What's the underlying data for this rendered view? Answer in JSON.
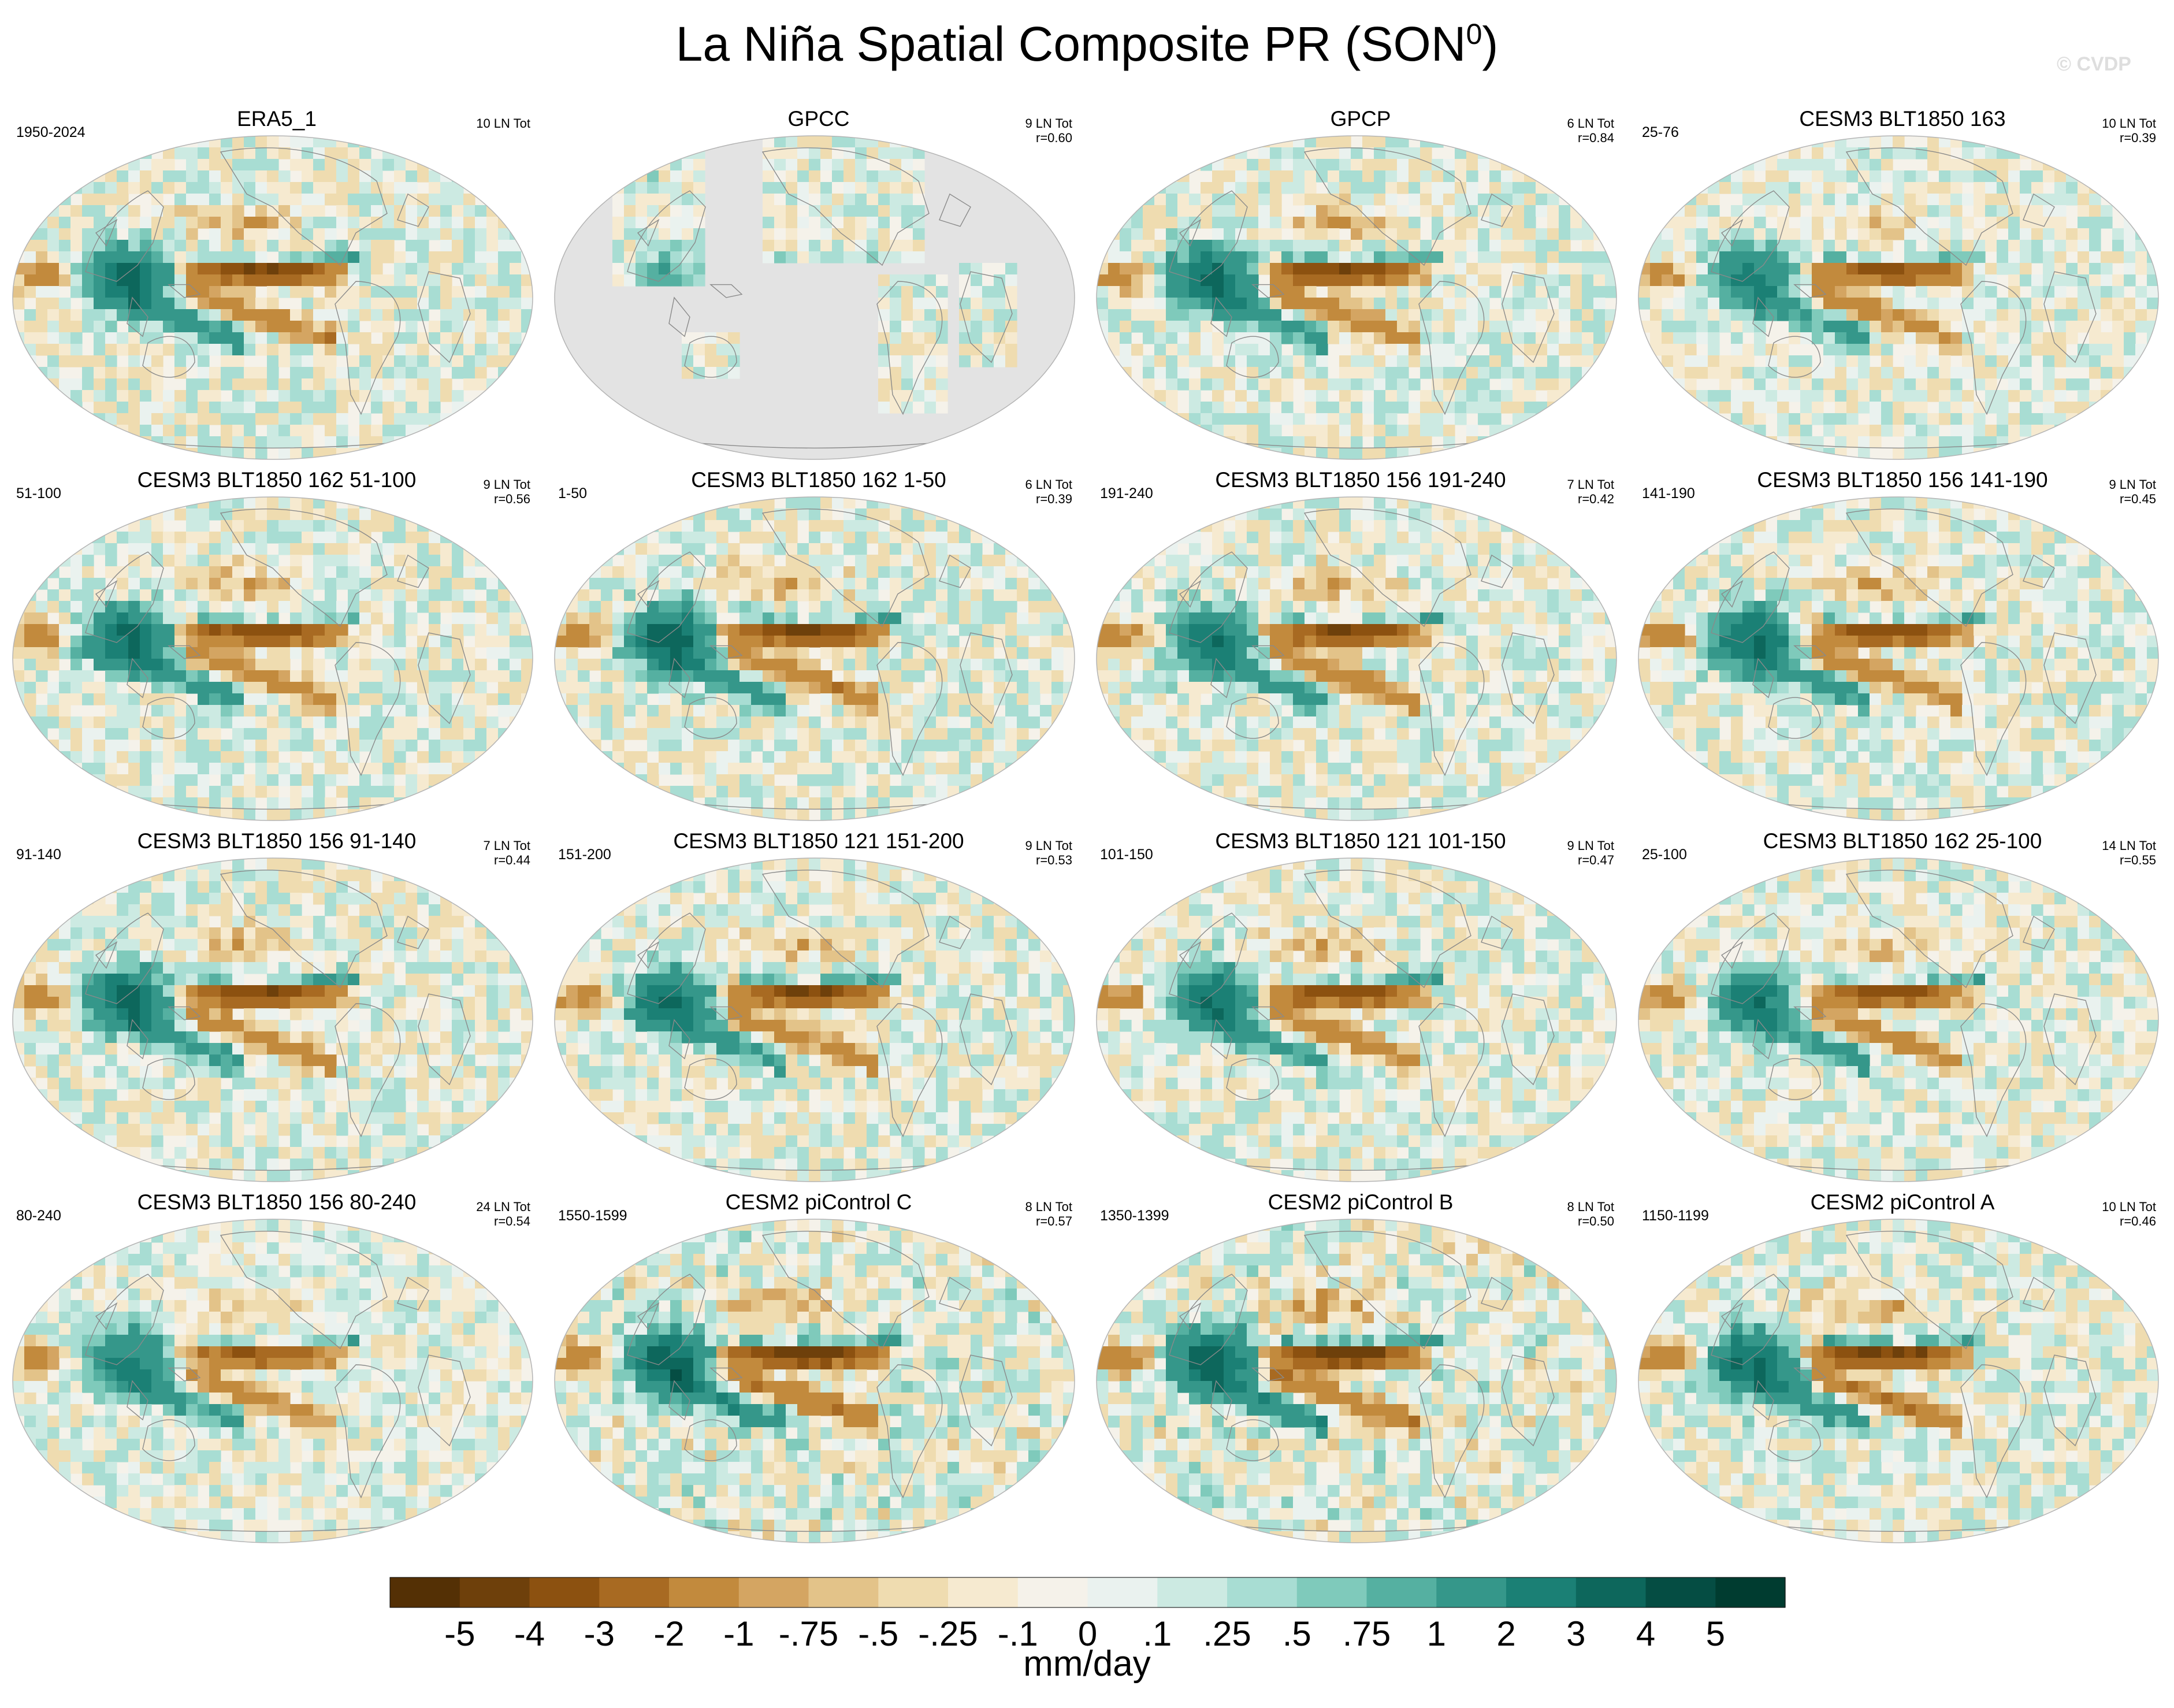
{
  "figure": {
    "title": "La Niña Spatial Composite PR (SON",
    "title_sup": "0",
    "title_tail": ")",
    "watermark": "© CVDP",
    "units": "mm/day"
  },
  "chart_data": {
    "type": "heatmap",
    "variable": "PR",
    "season": "SON0",
    "colorbar": {
      "levels": [
        "-5",
        "-4",
        "-3",
        "-2",
        "-1",
        "-.75",
        "-.5",
        "-.25",
        "-.1",
        "0",
        ".1",
        ".25",
        ".5",
        ".75",
        "1",
        "2",
        "3",
        "4",
        "5"
      ],
      "colors": [
        "#543005",
        "#6e400b",
        "#8c5110",
        "#a86a22",
        "#c28a3d",
        "#d4a562",
        "#e3c389",
        "#efdcb0",
        "#f6ead0",
        "#f5f2ea",
        "#eaf2ef",
        "#cceae2",
        "#a8ddd3",
        "#7fcabb",
        "#55b0a1",
        "#35978a",
        "#1b8075",
        "#0d675c",
        "#054d43",
        "#003c30"
      ],
      "unit": "mm/day"
    },
    "panels": [
      {
        "title": "ERA5_1",
        "left": "1950-2024",
        "right1": "10 LN Tot",
        "right2": "",
        "gpcc": false,
        "amp": 1.0,
        "seed": 11
      },
      {
        "title": "GPCC",
        "left": "",
        "right1": "9 LN Tot",
        "right2": "r=0.60",
        "gpcc": true,
        "amp": 0.8,
        "seed": 12
      },
      {
        "title": "GPCP",
        "left": "",
        "right1": "6 LN Tot",
        "right2": "r=0.84",
        "gpcc": false,
        "amp": 1.0,
        "seed": 13
      },
      {
        "title": "CESM3 BLT1850 163",
        "left": "25-76",
        "right1": "10 LN Tot",
        "right2": "r=0.39",
        "gpcc": false,
        "amp": 0.8,
        "seed": 14
      },
      {
        "title": "CESM3 BLT1850 162 51-100",
        "left": "51-100",
        "right1": "9 LN Tot",
        "right2": "r=0.56",
        "gpcc": false,
        "amp": 1.0,
        "seed": 21
      },
      {
        "title": "CESM3 BLT1850 162 1-50",
        "left": "1-50",
        "right1": "6 LN Tot",
        "right2": "r=0.39",
        "gpcc": false,
        "amp": 1.1,
        "seed": 22
      },
      {
        "title": "CESM3 BLT1850 156 191-240",
        "left": "191-240",
        "right1": "7 LN Tot",
        "right2": "r=0.42",
        "gpcc": false,
        "amp": 1.0,
        "seed": 23
      },
      {
        "title": "CESM3 BLT1850 156 141-190",
        "left": "141-190",
        "right1": "9 LN Tot",
        "right2": "r=0.45",
        "gpcc": false,
        "amp": 1.0,
        "seed": 24
      },
      {
        "title": "CESM3 BLT1850 156 91-140",
        "left": "91-140",
        "right1": "7 LN Tot",
        "right2": "r=0.44",
        "gpcc": false,
        "amp": 1.0,
        "seed": 31
      },
      {
        "title": "CESM3 BLT1850 121 151-200",
        "left": "151-200",
        "right1": "9 LN Tot",
        "right2": "r=0.53",
        "gpcc": false,
        "amp": 1.0,
        "seed": 32
      },
      {
        "title": "CESM3 BLT1850 121 101-150",
        "left": "101-150",
        "right1": "9 LN Tot",
        "right2": "r=0.47",
        "gpcc": false,
        "amp": 1.0,
        "seed": 33
      },
      {
        "title": "CESM3 BLT1850 162 25-100",
        "left": "25-100",
        "right1": "14 LN Tot",
        "right2": "r=0.55",
        "gpcc": false,
        "amp": 0.9,
        "seed": 34
      },
      {
        "title": "CESM3 BLT1850 156 80-240",
        "left": "80-240",
        "right1": "24 LN Tot",
        "right2": "r=0.54",
        "gpcc": false,
        "amp": 0.8,
        "seed": 41
      },
      {
        "title": "CESM2 piControl C",
        "left": "1550-1599",
        "right1": "8 LN Tot",
        "right2": "r=0.57",
        "gpcc": false,
        "amp": 1.2,
        "seed": 42
      },
      {
        "title": "CESM2 piControl B",
        "left": "1350-1399",
        "right1": "8 LN Tot",
        "right2": "r=0.50",
        "gpcc": false,
        "amp": 1.2,
        "seed": 43
      },
      {
        "title": "CESM2 piControl A",
        "left": "1150-1199",
        "right1": "10 LN Tot",
        "right2": "r=0.46",
        "gpcc": false,
        "amp": 1.1,
        "seed": 44
      }
    ]
  }
}
